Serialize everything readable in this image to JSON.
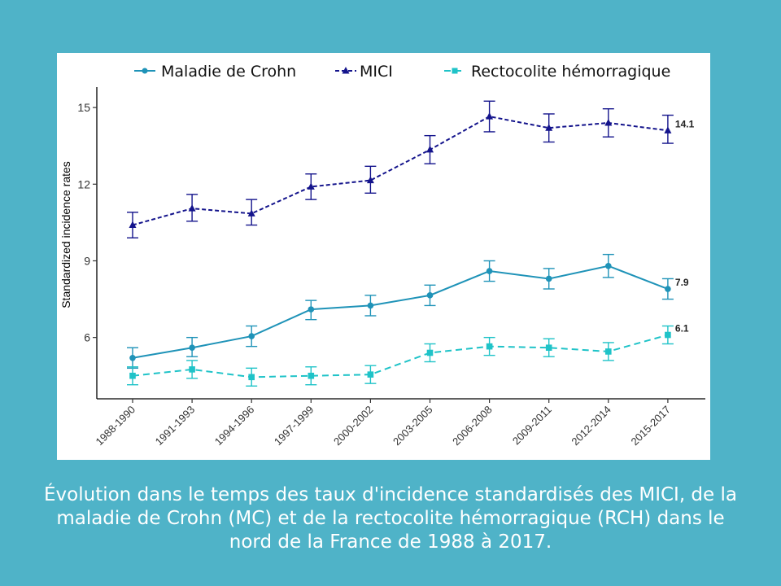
{
  "caption": "Évolution dans le temps des taux d'incidence standardisés des MICI, de la maladie de Crohn (MC) et de la rectocolite hémorragique (RCH) dans le nord de la France de 1988 à 2017.",
  "chart_data": {
    "type": "line",
    "title": "",
    "xlabel": "",
    "ylabel": "Standardized incidence rates",
    "yticks": [
      6,
      9,
      12,
      15
    ],
    "ylim": [
      3.6,
      15.8
    ],
    "grid": false,
    "legend_position": "top",
    "categories": [
      "1988-1990",
      "1991-1993",
      "1994-1996",
      "1997-1999",
      "2000-2002",
      "2003-2005",
      "2006-2008",
      "2009-2011",
      "2012-2014",
      "2015-2017"
    ],
    "series": [
      {
        "name": "Maladie de Crohn",
        "color": "#1f93b8",
        "marker": "circle",
        "line": "solid",
        "values": [
          5.2,
          5.6,
          6.05,
          7.1,
          7.25,
          7.65,
          8.6,
          8.3,
          8.8,
          7.9
        ],
        "err_low": [
          4.8,
          5.25,
          5.65,
          6.7,
          6.85,
          7.25,
          8.2,
          7.9,
          8.35,
          7.5
        ],
        "err_high": [
          5.6,
          6.0,
          6.45,
          7.45,
          7.65,
          8.05,
          9.0,
          8.7,
          9.25,
          8.3
        ],
        "end_label": "7.9"
      },
      {
        "name": "MICI",
        "color": "#14148c",
        "marker": "triangle",
        "line": "dotted",
        "values": [
          10.4,
          11.05,
          10.85,
          11.9,
          12.15,
          13.35,
          14.65,
          14.2,
          14.4,
          14.1
        ],
        "err_low": [
          9.9,
          10.55,
          10.4,
          11.4,
          11.65,
          12.8,
          14.05,
          13.65,
          13.85,
          13.6
        ],
        "err_high": [
          10.9,
          11.6,
          11.4,
          12.4,
          12.7,
          13.9,
          15.25,
          14.75,
          14.95,
          14.7
        ],
        "end_label": "14.1"
      },
      {
        "name": "Rectocolite hémorragique",
        "color": "#1fc3c8",
        "marker": "square",
        "line": "dashed",
        "values": [
          4.5,
          4.75,
          4.45,
          4.5,
          4.55,
          5.4,
          5.65,
          5.6,
          5.45,
          6.1
        ],
        "err_low": [
          4.15,
          4.4,
          4.1,
          4.15,
          4.2,
          5.05,
          5.3,
          5.25,
          5.1,
          5.75
        ],
        "err_high": [
          4.85,
          5.1,
          4.8,
          4.85,
          4.9,
          5.75,
          6.0,
          5.95,
          5.8,
          6.45
        ],
        "end_label": "6.1"
      }
    ]
  }
}
